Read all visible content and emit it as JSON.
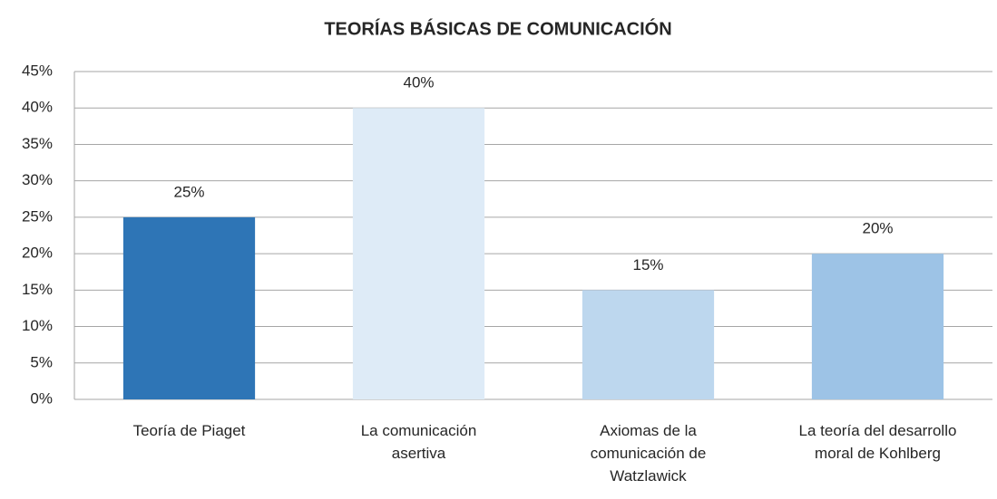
{
  "chart_data": {
    "type": "bar",
    "title": "TEORÍAS BÁSICAS DE COMUNICACIÓN",
    "categories": [
      "Teoría de Piaget",
      "La comunicación asertiva",
      "Axiomas de la comunicación de Watzlawick",
      "La teoría del desarrollo moral de Kohlberg"
    ],
    "values": [
      25,
      40,
      15,
      20
    ],
    "value_labels": [
      "25%",
      "40%",
      "15%",
      "20%"
    ],
    "colors": [
      "#2e75b6",
      "#deebf7",
      "#bdd7ee",
      "#9dc3e6"
    ],
    "ylim": [
      0,
      45
    ],
    "yticks": [
      {
        "value": 0,
        "label": "0%"
      },
      {
        "value": 5,
        "label": "5%"
      },
      {
        "value": 10,
        "label": "10%"
      },
      {
        "value": 15,
        "label": "15%"
      },
      {
        "value": 20,
        "label": "20%"
      },
      {
        "value": 25,
        "label": "25%"
      },
      {
        "value": 30,
        "label": "30%"
      },
      {
        "value": 35,
        "label": "35%"
      },
      {
        "value": 40,
        "label": "40%"
      },
      {
        "value": 45,
        "label": "45%"
      }
    ],
    "grid": true
  }
}
